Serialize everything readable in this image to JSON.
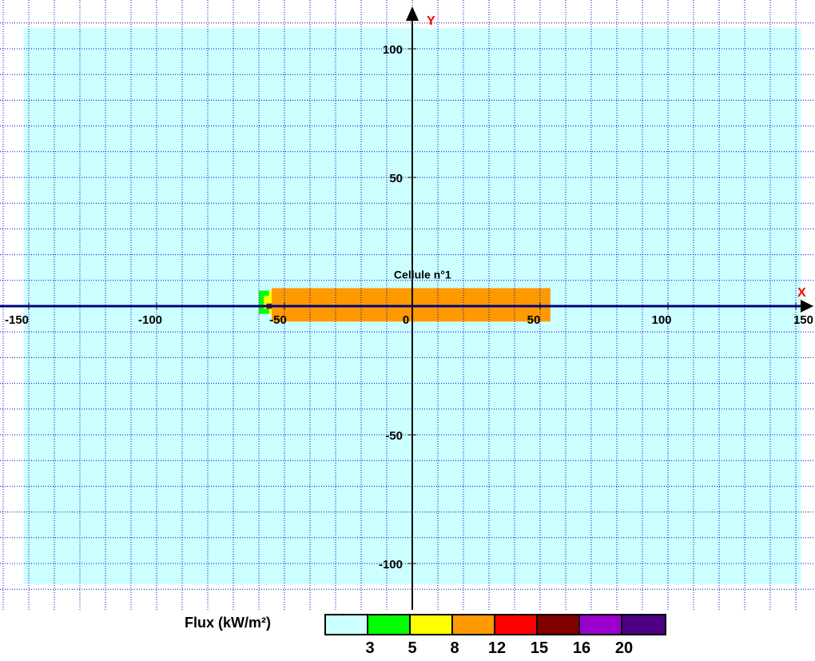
{
  "chart_data": {
    "type": "heatmap",
    "title": "",
    "xlabel": "X",
    "ylabel": "Y",
    "xlim": [
      -152,
      152
    ],
    "ylim": [
      -114,
      116
    ],
    "x_ticks": [
      -150,
      -100,
      -50,
      0,
      50,
      100,
      150
    ],
    "y_ticks": [
      100,
      50,
      -50,
      -100
    ],
    "grid": true,
    "background_zone": {
      "x": [
        -152,
        152
      ],
      "y": [
        -108,
        108
      ],
      "color": "#ccffff"
    },
    "zones": [
      {
        "name": "orange",
        "x": [
          -55,
          54
        ],
        "y": [
          -6,
          7
        ],
        "color": "#ff9900"
      },
      {
        "name": "green-edge",
        "x": [
          -60,
          -58
        ],
        "y": [
          -3,
          6
        ],
        "color": "#00ff00"
      },
      {
        "name": "green-edge-top",
        "x": [
          -58,
          -56
        ],
        "y": [
          4,
          6
        ],
        "color": "#00ff00"
      },
      {
        "name": "green-edge-bottom",
        "x": [
          -58,
          -56
        ],
        "y": [
          -3,
          -1
        ],
        "color": "#00ff00"
      },
      {
        "name": "yellow-edge",
        "x": [
          -58,
          -56
        ],
        "y": [
          -1,
          4
        ],
        "color": "#ffff00"
      },
      {
        "name": "yellow-edge-2",
        "x": [
          -56,
          -55
        ],
        "y": [
          -3,
          6
        ],
        "color": "#ffff00"
      },
      {
        "name": "dark-red-core",
        "x": [
          -57,
          -55
        ],
        "y": [
          -1,
          1
        ],
        "color": "#800000"
      }
    ],
    "annotations": [
      {
        "text": "Cellule n°1",
        "x": 4,
        "y": 12
      }
    ]
  },
  "legend": {
    "title": "Flux (kW/m²)",
    "colors": [
      "#ccffff",
      "#00ff00",
      "#ffff00",
      "#ff9900",
      "#ff0000",
      "#800000",
      "#9900cc",
      "#4b0082"
    ],
    "tick_labels": [
      "3",
      "5",
      "8",
      "12",
      "15",
      "16",
      "20"
    ]
  }
}
